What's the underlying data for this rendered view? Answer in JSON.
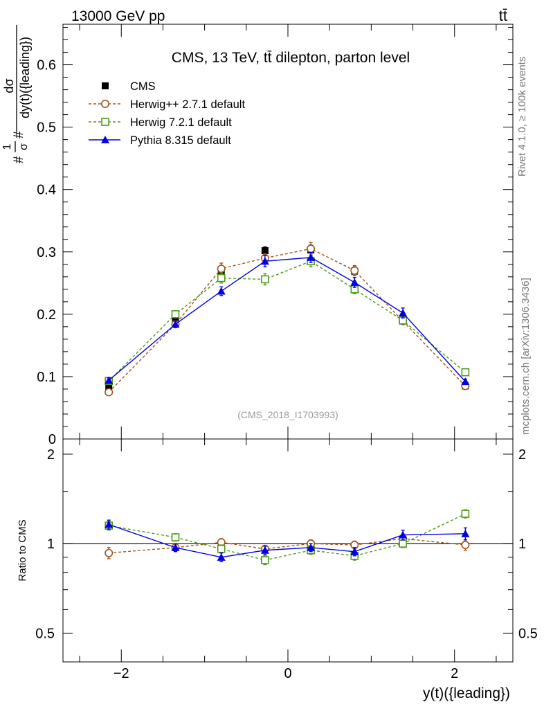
{
  "header": {
    "energy_label": "13000 GeV pp",
    "process_label": "tt̄",
    "rivet_label": "Rivet 4.1.0, ≥ 100k events",
    "mcplots_label": "mcplots.cern.ch [arXiv:1306.3436]"
  },
  "chart_data": {
    "type": "line",
    "title": "CMS, 13 TeV, tt̄ dilepton, parton level",
    "watermark": "(CMS_2018_I1703993)",
    "xlabel": "y(t)({leading})",
    "ylabel": "#frac{1}{σ}#frac{dσ}{dy(t)({leading})}",
    "xlim": [
      -2.7,
      2.7
    ],
    "x_ticks": [
      -2,
      0,
      2
    ],
    "x_tick_labels": [
      "−2",
      "0",
      "2"
    ],
    "x": [
      -2.15,
      -1.35,
      -0.8,
      -0.275,
      0.275,
      0.8,
      1.38,
      2.13
    ],
    "main": {
      "ylim": [
        0,
        0.665
      ],
      "y_ticks": [
        0,
        0.1,
        0.2,
        0.3,
        0.4,
        0.5,
        0.6
      ],
      "y_tick_labels": [
        "0",
        "0.1",
        "0.2",
        "0.3",
        "0.4",
        "0.5",
        "0.6"
      ],
      "series": [
        {
          "name": "CMS",
          "color": "#000000",
          "marker": "filled-square",
          "line": "none",
          "values": [
            0.081,
            0.19,
            0.27,
            0.302,
            0.303,
            0.269,
            0.19,
            0.085
          ],
          "errors": [
            0.004,
            0.006,
            0.008,
            0.006,
            0.008,
            0.007,
            0.006,
            0.004
          ]
        },
        {
          "name": "Herwig++ 2.7.1 default",
          "color": "#a0521a",
          "marker": "open-circle",
          "line": "dashed",
          "values": [
            0.075,
            0.184,
            0.273,
            0.29,
            0.305,
            0.27,
            0.189,
            0.085
          ],
          "errors": [
            0.004,
            0.005,
            0.009,
            0.007,
            0.01,
            0.008,
            0.005,
            0.004
          ]
        },
        {
          "name": "Herwig 7.2.1 default",
          "color": "#4c9a17",
          "marker": "open-square",
          "line": "dashed",
          "values": [
            0.093,
            0.2,
            0.258,
            0.256,
            0.285,
            0.24,
            0.19,
            0.107
          ],
          "errors": [
            0.004,
            0.005,
            0.008,
            0.009,
            0.009,
            0.007,
            0.005,
            0.004
          ]
        },
        {
          "name": "Pythia 8.315 default",
          "color": "#0000e0",
          "marker": "filled-triangle",
          "line": "solid",
          "values": [
            0.094,
            0.184,
            0.237,
            0.285,
            0.291,
            0.251,
            0.202,
            0.092
          ],
          "errors": [
            0.004,
            0.005,
            0.007,
            0.009,
            0.008,
            0.008,
            0.008,
            0.004
          ]
        }
      ]
    },
    "ratio": {
      "ylabel": "Ratio to CMS",
      "ylim": [
        0.4,
        2.25
      ],
      "log": true,
      "y_ticks": [
        0.5,
        1,
        2
      ],
      "y_tick_labels": [
        "0.5",
        "1",
        "2"
      ],
      "reference": 1,
      "series": [
        {
          "name": "Herwig++ 2.7.1 default",
          "color": "#a0521a",
          "marker": "open-circle",
          "line": "dashed",
          "values": [
            0.93,
            0.97,
            1.01,
            0.96,
            1.0,
            0.99,
            1.04,
            0.99
          ],
          "errors": [
            0.04,
            0.03,
            0.03,
            0.025,
            0.03,
            0.03,
            0.03,
            0.04
          ]
        },
        {
          "name": "Herwig 7.2.1 default",
          "color": "#4c9a17",
          "marker": "open-square",
          "line": "dashed",
          "values": [
            1.15,
            1.05,
            0.96,
            0.88,
            0.95,
            0.91,
            1.0,
            1.26
          ],
          "errors": [
            0.04,
            0.03,
            0.03,
            0.03,
            0.03,
            0.03,
            0.03,
            0.04
          ]
        },
        {
          "name": "Pythia 8.315 default",
          "color": "#0000e0",
          "marker": "filled-triangle",
          "line": "solid",
          "values": [
            1.16,
            0.97,
            0.9,
            0.95,
            0.97,
            0.94,
            1.07,
            1.08
          ],
          "errors": [
            0.04,
            0.03,
            0.03,
            0.03,
            0.03,
            0.03,
            0.04,
            0.05
          ]
        }
      ]
    }
  }
}
